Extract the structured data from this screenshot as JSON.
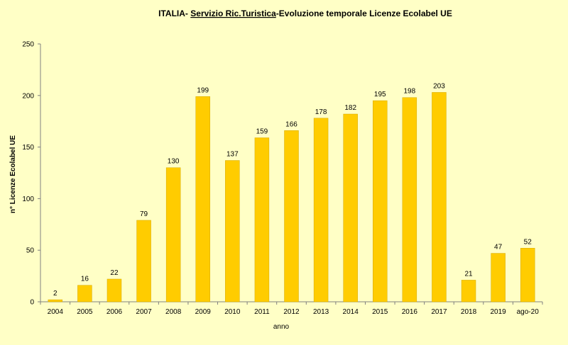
{
  "chart_data": {
    "type": "bar",
    "title_prefix": "ITALIA- ",
    "title_underlined": "Servizio Ric.Turistica",
    "title_suffix": "-Evoluzione temporale Licenze Ecolabel UE",
    "xlabel": "anno",
    "ylabel": "n° Licenze Ecolabel UE",
    "categories": [
      "2004",
      "2005",
      "2006",
      "2007",
      "2008",
      "2009",
      "2010",
      "2011",
      "2012",
      "2013",
      "2014",
      "2015",
      "2016",
      "2017",
      "2018",
      "2019",
      "ago-20"
    ],
    "values": [
      2,
      16,
      22,
      79,
      130,
      199,
      137,
      159,
      166,
      178,
      182,
      195,
      198,
      203,
      21,
      47,
      52
    ],
    "ylim": [
      0,
      250
    ],
    "yticks": [
      0,
      50,
      100,
      150,
      200,
      250
    ],
    "grid": false,
    "legend": "none",
    "bar_color": "#FFCC00",
    "bar_edge_color": "#D4A800",
    "axis_color": "#808080",
    "background_color": "#FFFFC6"
  }
}
